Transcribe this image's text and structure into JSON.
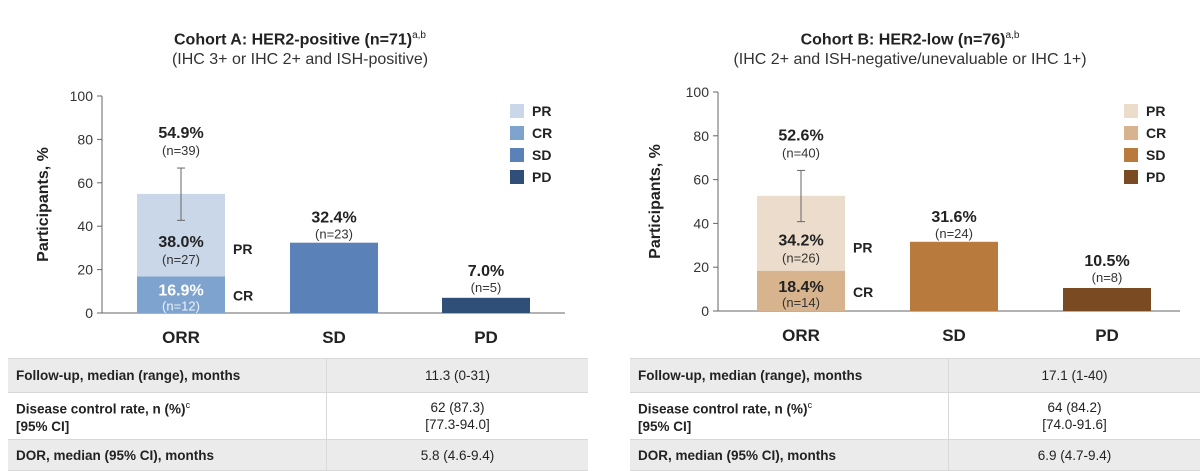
{
  "chart_data": [
    {
      "type": "bar",
      "title": "Cohort A: HER2-positive (n=71)",
      "title_sup": "a,b",
      "subtitle": "(IHC 3+ or IHC 2+ and ISH-positive)",
      "ylabel": "Participants, %",
      "xlabel": "",
      "ylim": [
        0,
        100
      ],
      "yticks": [
        0,
        20,
        40,
        60,
        80,
        100
      ],
      "categories": [
        "ORR",
        "SD",
        "PD"
      ],
      "legend": [
        "PR",
        "CR",
        "SD",
        "PD"
      ],
      "legend_position": "top-right",
      "colors": {
        "PR": "#c9d7e8",
        "CR": "#7ea3cf",
        "SD": "#5b82b8",
        "PD": "#2f4e78"
      },
      "orr": {
        "cr": 16.9,
        "pr": 38.0,
        "total": 54.9,
        "cr_label": "16.9%",
        "cr_n": "(n=12)",
        "cr_tag": "CR",
        "pr_label": "38.0%",
        "pr_n": "(n=27)",
        "pr_tag": "PR",
        "total_label": "54.9%",
        "total_n": "(n=39)",
        "ci": [
          42.7,
          66.8
        ]
      },
      "sd": {
        "value": 32.4,
        "label": "32.4%",
        "n": "(n=23)"
      },
      "pd": {
        "value": 7.0,
        "label": "7.0%",
        "n": "(n=5)"
      }
    },
    {
      "type": "bar",
      "title": "Cohort B: HER2-low (n=76)",
      "title_sup": "a,b",
      "subtitle": "(IHC 2+ and ISH-negative/unevaluable or IHC 1+)",
      "ylabel": "Participants, %",
      "xlabel": "",
      "ylim": [
        0,
        100
      ],
      "yticks": [
        0,
        20,
        40,
        60,
        80,
        100
      ],
      "categories": [
        "ORR",
        "SD",
        "PD"
      ],
      "legend": [
        "PR",
        "CR",
        "SD",
        "PD"
      ],
      "legend_position": "top-right",
      "colors": {
        "PR": "#ecdccb",
        "CR": "#d8b48e",
        "SD": "#b87a3d",
        "PD": "#7a4a22"
      },
      "orr": {
        "cr": 18.4,
        "pr": 34.2,
        "total": 52.6,
        "cr_label": "18.4%",
        "cr_n": "(n=14)",
        "cr_tag": "CR",
        "pr_label": "34.2%",
        "pr_n": "(n=26)",
        "pr_tag": "PR",
        "total_label": "52.6%",
        "total_n": "(n=40)",
        "ci": [
          40.8,
          64.2
        ]
      },
      "sd": {
        "value": 31.6,
        "label": "31.6%",
        "n": "(n=24)"
      },
      "pd": {
        "value": 10.5,
        "label": "10.5%",
        "n": "(n=8)"
      }
    }
  ],
  "tables": [
    {
      "rows": [
        {
          "label": "Follow-up, median (range), months",
          "value": "11.3 (0-31)"
        },
        {
          "label": "Disease control rate, n (%)",
          "label_sup": "c",
          "label_extra": "[95% CI]",
          "value": "62 (87.3)",
          "value_extra": "[77.3-94.0]"
        },
        {
          "label": "DOR, median (95% CI), months",
          "value": "5.8 (4.6-9.4)"
        }
      ]
    },
    {
      "rows": [
        {
          "label": "Follow-up, median (range), months",
          "value": "17.1 (1-40)"
        },
        {
          "label": "Disease control rate, n (%)",
          "label_sup": "c",
          "label_extra": "[95% CI]",
          "value": "64 (84.2)",
          "value_extra": "[74.0-91.6]"
        },
        {
          "label": "DOR, median (95% CI), months",
          "value": "6.9 (4.7-9.4)"
        }
      ]
    }
  ]
}
